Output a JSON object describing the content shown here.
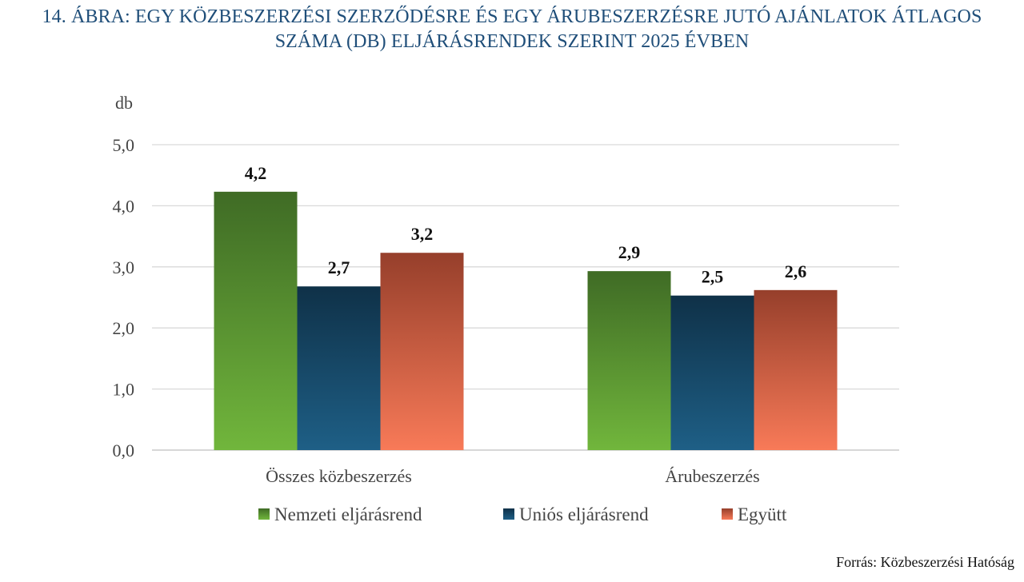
{
  "chart_data": {
    "type": "bar",
    "title_lines": [
      "14. ÁBRA: EGY KÖZBESZERZÉSI SZERZŐDÉSRE ÉS EGY ÁRUBESZERZÉSRE JUTÓ AJÁNLATOK ÁTLAGOS",
      "SZÁMA (DB) ELJÁRÁSRENDEK SZERINT 2025 ÉVBEN"
    ],
    "ylabel": "db",
    "ylim": [
      0,
      5
    ],
    "yticks": [
      "0,0",
      "1,0",
      "2,0",
      "3,0",
      "4,0",
      "5,0"
    ],
    "grid": true,
    "legend_position": "bottom",
    "categories": [
      "Összes közbeszerzés",
      "Árubeszerzés"
    ],
    "series": [
      {
        "name": "Nemzeti eljárásrend",
        "values": [
          4.23,
          2.93
        ],
        "labels": [
          "4,2",
          "2,9"
        ],
        "color_top": "#3f6b25",
        "color_bottom": "#71b63c"
      },
      {
        "name": "Uniós eljárásrend",
        "values": [
          2.68,
          2.53
        ],
        "labels": [
          "2,7",
          "2,5"
        ],
        "color_top": "#0f3148",
        "color_bottom": "#1e5f86"
      },
      {
        "name": "Együtt",
        "values": [
          3.23,
          2.62
        ],
        "labels": [
          "3,2",
          "2,6"
        ],
        "color_top": "#963f2b",
        "color_bottom": "#f87a58"
      }
    ]
  },
  "source": "Forrás: Közbeszerzési Hatóság"
}
